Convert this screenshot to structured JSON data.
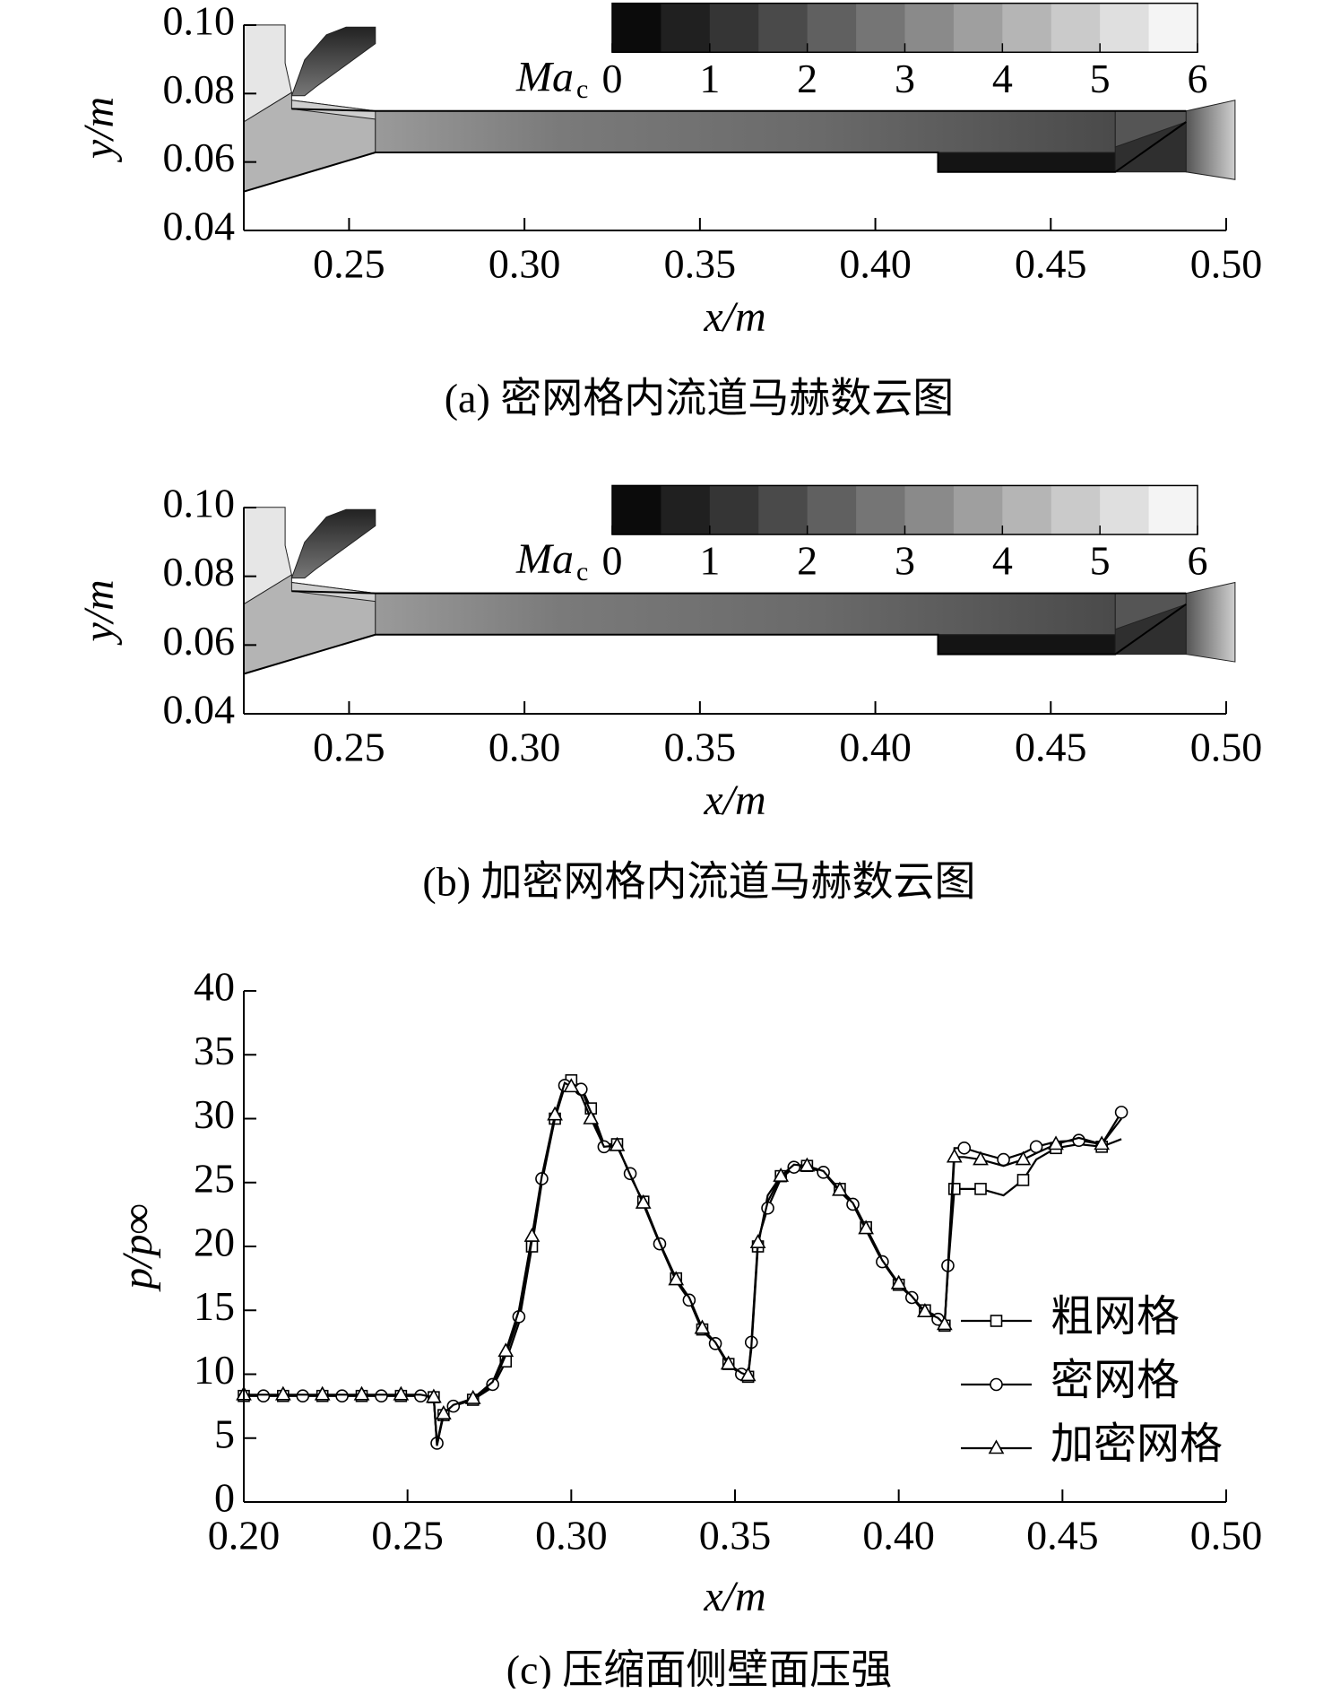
{
  "chart_data": [
    {
      "type": "contour",
      "caption": "(a) 密网格内流道马赫数云图",
      "xlabel": "x/m",
      "ylabel": "y/m",
      "xlim": [
        0.22,
        0.5
      ],
      "ylim": [
        0.04,
        0.1
      ],
      "xticks": [
        0.25,
        {
          "value": 0.3,
          "label": "0.30"
        },
        0.35,
        {
          "value": 0.4,
          "label": "0.40"
        },
        0.45,
        {
          "value": 0.5,
          "label": "0.50"
        }
      ],
      "yticks": [
        {
          "value": 0.04,
          "label": "0.04"
        },
        {
          "value": 0.06,
          "label": "0.06"
        },
        {
          "value": 0.08,
          "label": "0.08"
        },
        {
          "value": 0.1,
          "label": "0.10"
        }
      ],
      "colorbar": {
        "label": "Ma",
        "label_sub": "c",
        "lim": [
          0,
          6
        ],
        "ticks": [
          0,
          1,
          2,
          3,
          4,
          5,
          6
        ],
        "colors": [
          "#000000",
          "#ffffff"
        ]
      }
    },
    {
      "type": "contour",
      "caption": "(b) 加密网格内流道马赫数云图",
      "xlabel": "x/m",
      "ylabel": "y/m",
      "xlim": [
        0.22,
        0.5
      ],
      "ylim": [
        0.04,
        0.1
      ],
      "xticks": [
        0.25,
        {
          "value": 0.3,
          "label": "0.30"
        },
        0.35,
        {
          "value": 0.4,
          "label": "0.40"
        },
        0.45,
        {
          "value": 0.5,
          "label": "0.50"
        }
      ],
      "yticks": [
        {
          "value": 0.04,
          "label": "0.04"
        },
        {
          "value": 0.06,
          "label": "0.06"
        },
        {
          "value": 0.08,
          "label": "0.08"
        },
        {
          "value": 0.1,
          "label": "0.10"
        }
      ],
      "colorbar": {
        "label": "Ma",
        "label_sub": "c",
        "lim": [
          0,
          6
        ],
        "ticks": [
          0,
          1,
          2,
          3,
          4,
          5,
          6
        ],
        "colors": [
          "#000000",
          "#ffffff"
        ]
      }
    },
    {
      "type": "line",
      "caption": "(c) 压缩面侧壁面压强",
      "xlabel": "x/m",
      "ylabel": "p/p∞",
      "xlim": [
        0.2,
        0.5
      ],
      "ylim": [
        0,
        40
      ],
      "xticks": [
        {
          "value": 0.2,
          "label": "0.20"
        },
        0.25,
        {
          "value": 0.3,
          "label": "0.30"
        },
        0.35,
        {
          "value": 0.4,
          "label": "0.40"
        },
        0.45,
        {
          "value": 0.5,
          "label": "0.50"
        }
      ],
      "yticks": [
        0,
        5,
        10,
        15,
        20,
        25,
        30,
        35,
        40
      ],
      "legend": "right",
      "markevery": 2,
      "x": [
        0.2,
        0.206,
        0.212,
        0.218,
        0.224,
        0.23,
        0.236,
        0.242,
        0.248,
        0.254,
        0.258,
        0.259,
        0.261,
        0.264,
        0.27,
        0.276,
        0.28,
        0.284,
        0.288,
        0.291,
        0.295,
        0.298,
        0.3,
        0.303,
        0.306,
        0.31,
        0.314,
        0.318,
        0.322,
        0.327,
        0.332,
        0.336,
        0.34,
        0.344,
        0.348,
        0.352,
        0.354,
        0.355,
        0.357,
        0.36,
        0.364,
        0.368,
        0.372,
        0.377,
        0.382,
        0.386,
        0.39,
        0.395,
        0.4,
        0.404,
        0.408,
        0.412,
        0.414,
        0.415,
        0.417,
        0.42,
        0.425,
        0.432,
        0.438,
        0.442,
        0.448,
        0.455,
        0.462,
        0.468
      ],
      "series": [
        {
          "name": "粗网格",
          "color": "#000000",
          "marker": "square",
          "values": [
            8.3,
            8.3,
            8.3,
            8.3,
            8.3,
            8.3,
            8.3,
            8.3,
            8.3,
            8.3,
            8.2,
            4.5,
            6.8,
            7.6,
            8.0,
            9.0,
            11.0,
            14.0,
            20.0,
            25.0,
            30.0,
            32.5,
            33.0,
            32.5,
            30.8,
            28.0,
            28.0,
            25.5,
            23.5,
            20.3,
            17.5,
            16.0,
            13.5,
            12.5,
            10.8,
            10.0,
            9.8,
            12.0,
            20.0,
            24.0,
            25.5,
            26.3,
            26.3,
            25.8,
            24.5,
            23.5,
            21.5,
            19.0,
            17.0,
            16.0,
            15.0,
            14.5,
            13.8,
            18.0,
            24.5,
            24.5,
            24.5,
            24.0,
            25.2,
            26.8,
            27.7,
            28.0,
            27.8,
            28.4
          ]
        },
        {
          "name": "密网格",
          "color": "#000000",
          "marker": "circle",
          "values": [
            8.3,
            8.3,
            8.3,
            8.3,
            8.3,
            8.3,
            8.3,
            8.3,
            8.3,
            8.3,
            8.2,
            4.6,
            7.0,
            7.5,
            8.0,
            9.2,
            11.5,
            14.5,
            20.5,
            25.3,
            30.0,
            32.6,
            32.8,
            32.3,
            30.5,
            27.8,
            27.8,
            25.7,
            23.3,
            20.2,
            17.3,
            15.8,
            13.4,
            12.4,
            10.7,
            10.0,
            9.8,
            12.5,
            20.5,
            23.0,
            25.3,
            26.2,
            26.2,
            25.8,
            24.3,
            23.3,
            21.3,
            18.8,
            17.0,
            16.0,
            14.8,
            14.3,
            13.8,
            18.5,
            27.7,
            27.7,
            27.3,
            26.8,
            27.3,
            27.8,
            28.2,
            28.3,
            28.0,
            30.5
          ]
        },
        {
          "name": "加密网格",
          "color": "#000000",
          "marker": "triangle",
          "values": [
            8.4,
            8.4,
            8.4,
            8.4,
            8.4,
            8.4,
            8.4,
            8.4,
            8.4,
            8.4,
            8.2,
            4.4,
            6.9,
            7.6,
            8.1,
            9.4,
            11.8,
            15.0,
            20.8,
            25.5,
            30.3,
            32.8,
            32.5,
            31.8,
            30.0,
            27.8,
            27.9,
            25.6,
            23.4,
            20.3,
            17.4,
            16.0,
            13.6,
            12.5,
            10.8,
            10.1,
            9.9,
            12.2,
            20.3,
            23.5,
            25.5,
            26.4,
            26.3,
            25.9,
            24.4,
            23.4,
            21.4,
            18.9,
            17.1,
            16.1,
            14.9,
            14.4,
            13.9,
            18.0,
            27.0,
            27.0,
            26.8,
            26.3,
            26.8,
            27.3,
            28.0,
            28.5,
            28.0,
            30.0
          ]
        }
      ]
    }
  ]
}
